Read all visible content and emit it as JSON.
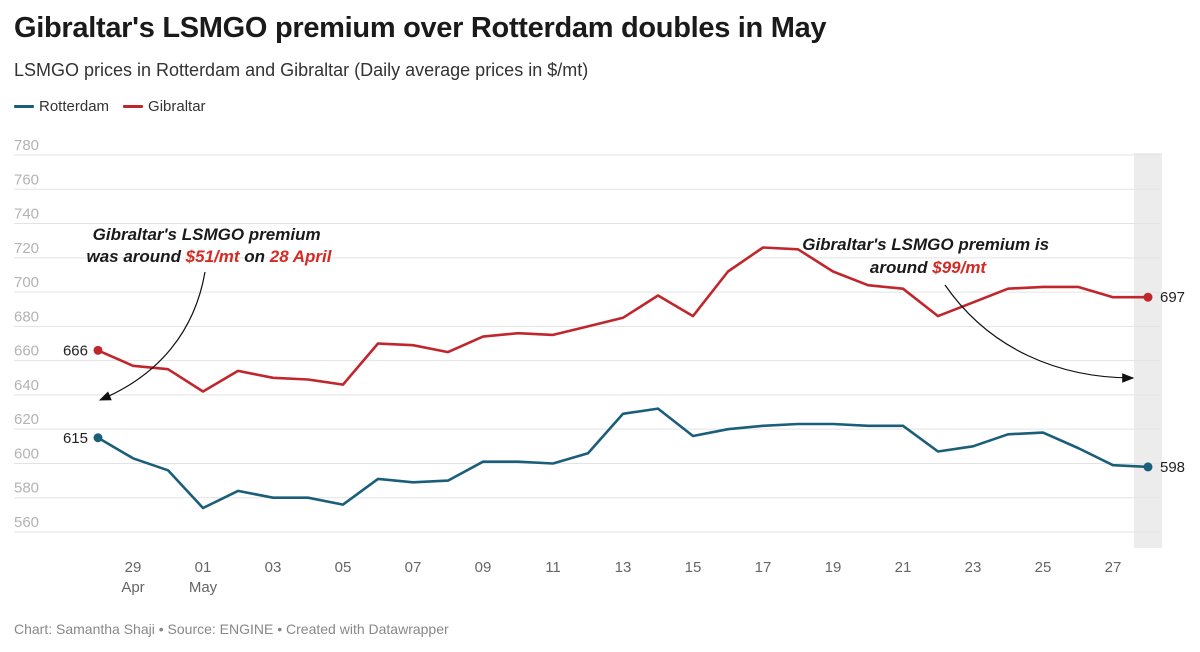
{
  "title": "Gibraltar's LSMGO premium over Rotterdam doubles in May",
  "subtitle": "LSMGO prices in Rotterdam and Gibraltar (Daily average prices in $/mt)",
  "legend": [
    {
      "name": "Rotterdam",
      "color": "#1b5e7a"
    },
    {
      "name": "Gibraltar",
      "color": "#c0272d"
    }
  ],
  "footer": "Chart: Samantha Shaji • Source: ENGINE • Created with Datawrapper",
  "annotations": {
    "left": {
      "line1": "Gibraltar's LSMGO premium",
      "line2_pre": "was around ",
      "line2_hl1": "$51/mt",
      "line2_mid": " on ",
      "line2_hl2": "28 April"
    },
    "right": {
      "line1": "Gibraltar's LSMGO premium is",
      "line2_pre": "around ",
      "line2_hl": "$99/mt"
    }
  },
  "chart_data": {
    "type": "line",
    "x": [
      "2024-04-28",
      "2024-04-29",
      "2024-04-30",
      "2024-05-01",
      "2024-05-02",
      "2024-05-03",
      "2024-05-04",
      "2024-05-05",
      "2024-05-06",
      "2024-05-07",
      "2024-05-08",
      "2024-05-09",
      "2024-05-10",
      "2024-05-11",
      "2024-05-12",
      "2024-05-13",
      "2024-05-14",
      "2024-05-15",
      "2024-05-16",
      "2024-05-17",
      "2024-05-18",
      "2024-05-19",
      "2024-05-20",
      "2024-05-21",
      "2024-05-22",
      "2024-05-23",
      "2024-05-24",
      "2024-05-25",
      "2024-05-26",
      "2024-05-27",
      "2024-05-28"
    ],
    "series": [
      {
        "name": "Rotterdam",
        "color": "#1b5e7a",
        "values": [
          615,
          603,
          596,
          574,
          584,
          580,
          580,
          576,
          591,
          589,
          590,
          601,
          601,
          600,
          606,
          629,
          632,
          616,
          620,
          622,
          623,
          623,
          622,
          622,
          607,
          610,
          617,
          618,
          609,
          599,
          598
        ]
      },
      {
        "name": "Gibraltar",
        "color": "#c0272d",
        "values": [
          666,
          657,
          655,
          642,
          654,
          650,
          649,
          646,
          670,
          669,
          665,
          674,
          676,
          675,
          680,
          685,
          698,
          686,
          712,
          726,
          725,
          712,
          704,
          702,
          686,
          694,
          702,
          703,
          703,
          697,
          697
        ]
      }
    ],
    "ylim": [
      560,
      780
    ],
    "yticks": [
      780,
      760,
      740,
      720,
      700,
      680,
      660,
      640,
      620,
      600,
      580,
      560
    ],
    "xticks": [
      {
        "index": 1,
        "label": "29",
        "sub": "Apr"
      },
      {
        "index": 3,
        "label": "01",
        "sub": "May"
      },
      {
        "index": 5,
        "label": "03",
        "sub": ""
      },
      {
        "index": 7,
        "label": "05",
        "sub": ""
      },
      {
        "index": 9,
        "label": "07",
        "sub": ""
      },
      {
        "index": 11,
        "label": "09",
        "sub": ""
      },
      {
        "index": 13,
        "label": "11",
        "sub": ""
      },
      {
        "index": 15,
        "label": "13",
        "sub": ""
      },
      {
        "index": 17,
        "label": "15",
        "sub": ""
      },
      {
        "index": 19,
        "label": "17",
        "sub": ""
      },
      {
        "index": 21,
        "label": "19",
        "sub": ""
      },
      {
        "index": 23,
        "label": "21",
        "sub": ""
      },
      {
        "index": 25,
        "label": "23",
        "sub": ""
      },
      {
        "index": 27,
        "label": "25",
        "sub": ""
      },
      {
        "index": 29,
        "label": "27",
        "sub": ""
      }
    ],
    "end_labels": {
      "Rotterdam": {
        "first": "615",
        "last": "598"
      },
      "Gibraltar": {
        "first": "666",
        "last": "697"
      }
    },
    "grid": true,
    "highlight_last_day": true
  }
}
